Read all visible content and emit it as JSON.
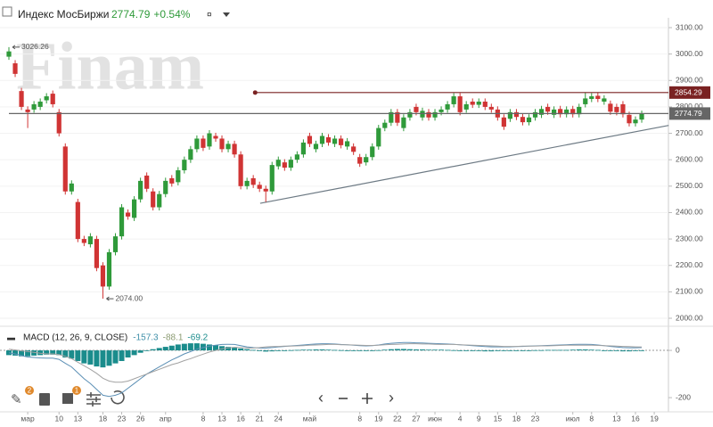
{
  "header": {
    "title": "Индекс МосБиржи",
    "price": 2774.79,
    "change": "+0.54%",
    "watermark": "Finam"
  },
  "toolbar": {
    "badges": [
      "2",
      "1"
    ]
  },
  "chart_data": [
    {
      "type": "candlestick",
      "up_color": "#2f9a3a",
      "down_color": "#d03434",
      "ylim": [
        2000,
        3100
      ],
      "yticks": [
        {
          "value": 2000,
          "label": "2000.00"
        },
        {
          "value": 2100,
          "label": "2100.00"
        },
        {
          "value": 2200,
          "label": "2200.00"
        },
        {
          "value": 2300,
          "label": "2300.00"
        },
        {
          "value": 2400,
          "label": "2400.00"
        },
        {
          "value": 2500,
          "label": "2500.00"
        },
        {
          "value": 2600,
          "label": "2600.00"
        },
        {
          "value": 2700,
          "label": "2700.00"
        },
        {
          "value": 2800,
          "label": "2800.00"
        },
        {
          "value": 2900,
          "label": "2900.00"
        },
        {
          "value": 3000,
          "label": "3000.00"
        },
        {
          "value": 3100,
          "label": "3100.00"
        }
      ],
      "xticks": [
        {
          "value": 3,
          "label": "мар"
        },
        {
          "value": 8,
          "label": "10"
        },
        {
          "value": 11,
          "label": "13"
        },
        {
          "value": 15,
          "label": "18"
        },
        {
          "value": 18,
          "label": "23"
        },
        {
          "value": 21,
          "label": "26"
        },
        {
          "value": 25,
          "label": "апр"
        },
        {
          "value": 31,
          "label": "8"
        },
        {
          "value": 34,
          "label": "13"
        },
        {
          "value": 37,
          "label": "16"
        },
        {
          "value": 40,
          "label": "21"
        },
        {
          "value": 43,
          "label": "24"
        },
        {
          "value": 48,
          "label": "май"
        },
        {
          "value": 56,
          "label": "8"
        },
        {
          "value": 59,
          "label": "19"
        },
        {
          "value": 62,
          "label": "22"
        },
        {
          "value": 65,
          "label": "27"
        },
        {
          "value": 68,
          "label": "июн"
        },
        {
          "value": 72,
          "label": "4"
        },
        {
          "value": 75,
          "label": "9"
        },
        {
          "value": 78,
          "label": "15"
        },
        {
          "value": 81,
          "label": "18"
        },
        {
          "value": 84,
          "label": "23"
        },
        {
          "value": 90,
          "label": "июл"
        },
        {
          "value": 93,
          "label": "8"
        },
        {
          "value": 97,
          "label": "13"
        },
        {
          "value": 100,
          "label": "16"
        },
        {
          "value": 103,
          "label": "19"
        }
      ],
      "open": [
        2990,
        2965,
        2860,
        2790,
        2790,
        2800,
        2825,
        2850,
        2780,
        2650,
        2480,
        2440,
        2300,
        2280,
        2300,
        2200,
        2120,
        2250,
        2310,
        2400,
        2380,
        2450,
        2540,
        2480,
        2420,
        2470,
        2530,
        2515,
        2560,
        2600,
        2640,
        2680,
        2650,
        2690,
        2680,
        2640,
        2660,
        2620,
        2500,
        2530,
        2505,
        2490,
        2480,
        2575,
        2590,
        2570,
        2600,
        2620,
        2690,
        2640,
        2660,
        2685,
        2660,
        2680,
        2650,
        2650,
        2610,
        2590,
        2610,
        2650,
        2720,
        2740,
        2780,
        2720,
        2760,
        2800,
        2760,
        2780,
        2760,
        2780,
        2790,
        2810,
        2840,
        2790,
        2820,
        2808,
        2820,
        2800,
        2790,
        2760,
        2755,
        2780,
        2762,
        2742,
        2760,
        2770,
        2800,
        2770,
        2792,
        2772,
        2792,
        2772,
        2810,
        2830,
        2842,
        2820,
        2812,
        2800,
        2810,
        2770,
        2738,
        2752
      ],
      "high": [
        3026.26,
        2977,
        2872,
        2802,
        2822,
        2832,
        2852,
        2862,
        2792,
        2662,
        2522,
        2452,
        2312,
        2322,
        2312,
        2212,
        2262,
        2322,
        2432,
        2412,
        2462,
        2532,
        2552,
        2492,
        2482,
        2532,
        2542,
        2572,
        2612,
        2652,
        2692,
        2692,
        2712,
        2702,
        2692,
        2672,
        2672,
        2632,
        2532,
        2542,
        2517,
        2502,
        2592,
        2612,
        2602,
        2612,
        2632,
        2677,
        2702,
        2672,
        2702,
        2697,
        2692,
        2692,
        2682,
        2662,
        2622,
        2622,
        2662,
        2732,
        2752,
        2792,
        2792,
        2772,
        2792,
        2812,
        2797,
        2792,
        2792,
        2802,
        2822,
        2852,
        2852,
        2822,
        2832,
        2832,
        2832,
        2812,
        2802,
        2772,
        2792,
        2792,
        2774,
        2772,
        2792,
        2804,
        2812,
        2802,
        2804,
        2802,
        2804,
        2812,
        2854.29,
        2852,
        2854,
        2844,
        2824,
        2812,
        2822,
        2782,
        2764,
        2786
      ],
      "low": [
        2978,
        2913,
        2788,
        2720,
        2778,
        2788,
        2813,
        2798,
        2688,
        2468,
        2468,
        2288,
        2273,
        2268,
        2178,
        2074,
        2108,
        2238,
        2298,
        2373,
        2368,
        2438,
        2478,
        2408,
        2408,
        2458,
        2498,
        2503,
        2548,
        2588,
        2628,
        2633,
        2638,
        2668,
        2628,
        2628,
        2608,
        2488,
        2488,
        2493,
        2478,
        2440,
        2468,
        2563,
        2558,
        2558,
        2588,
        2608,
        2648,
        2628,
        2648,
        2653,
        2648,
        2643,
        2638,
        2618,
        2573,
        2578,
        2598,
        2638,
        2708,
        2728,
        2728,
        2708,
        2748,
        2768,
        2748,
        2748,
        2748,
        2768,
        2778,
        2798,
        2768,
        2778,
        2796,
        2796,
        2788,
        2778,
        2748,
        2713,
        2743,
        2750,
        2730,
        2730,
        2748,
        2758,
        2770,
        2758,
        2760,
        2760,
        2760,
        2760,
        2798,
        2818,
        2818,
        2808,
        2770,
        2768,
        2760,
        2726,
        2726,
        2740
      ],
      "close": [
        3010,
        2925,
        2800,
        2780,
        2810,
        2820,
        2840,
        2810,
        2700,
        2480,
        2510,
        2300,
        2285,
        2310,
        2190,
        2120,
        2250,
        2310,
        2420,
        2385,
        2450,
        2520,
        2490,
        2420,
        2470,
        2520,
        2510,
        2560,
        2600,
        2640,
        2680,
        2645,
        2700,
        2680,
        2640,
        2660,
        2620,
        2500,
        2520,
        2505,
        2490,
        2480,
        2580,
        2600,
        2570,
        2600,
        2620,
        2665,
        2660,
        2660,
        2690,
        2665,
        2680,
        2655,
        2670,
        2630,
        2585,
        2610,
        2650,
        2720,
        2740,
        2780,
        2740,
        2760,
        2780,
        2780,
        2785,
        2760,
        2780,
        2790,
        2810,
        2840,
        2780,
        2810,
        2808,
        2820,
        2800,
        2790,
        2760,
        2725,
        2780,
        2762,
        2742,
        2760,
        2780,
        2792,
        2782,
        2790,
        2772,
        2790,
        2772,
        2800,
        2832,
        2840,
        2830,
        2832,
        2782,
        2780,
        2772,
        2738,
        2752,
        2774.79
      ],
      "max_label": 3026.26,
      "min_label": {
        "value": 2074,
        "label": "2074.00"
      },
      "levels": [
        {
          "value": 2854.29,
          "x_start": 39.3,
          "color": "#7a2222"
        },
        {
          "value": 2774.79,
          "x_start": 0,
          "color": "#666666"
        }
      ],
      "trendline": {
        "x": [
          40.1,
          105.3
        ],
        "y": [
          2435,
          2730
        ],
        "color": "#6d7a84"
      }
    },
    {
      "type": "macd",
      "title": "MACD (12, 26, 9, CLOSE)",
      "readouts": [
        {
          "text": "-157.3",
          "color": "#3f8fa8"
        },
        {
          "text": "-88.1",
          "color": "#8a9a70"
        },
        {
          "text": "-69.2",
          "color": "#1a8c8c"
        }
      ],
      "ylim": [
        -245,
        87
      ],
      "yticks": [
        0,
        -200
      ],
      "histogram": {
        "color": "#1a8c8c",
        "values": [
          -20,
          -22,
          -25,
          -25,
          -22,
          -20,
          -18,
          -18,
          -20,
          -30,
          -35,
          -45,
          -55,
          -60,
          -68,
          -72,
          -65,
          -55,
          -45,
          -30,
          -20,
          -10,
          0,
          5,
          10,
          15,
          20,
          25,
          28,
          30,
          30,
          28,
          25,
          22,
          18,
          15,
          12,
          8,
          5,
          2,
          -2,
          -5,
          -4,
          -2,
          -1,
          1,
          2,
          3,
          3,
          4,
          4,
          3,
          2,
          1,
          0,
          -1,
          -2,
          -2,
          -1,
          1,
          3,
          5,
          6,
          6,
          5,
          4,
          4,
          3,
          3,
          3,
          2,
          1,
          0,
          -1,
          -2,
          -3,
          -4,
          -4,
          -3,
          -2,
          -2,
          -1,
          -1,
          0,
          1,
          1,
          2,
          2,
          2,
          2,
          3,
          4,
          4,
          3,
          2,
          0,
          -2,
          -3,
          -4,
          -4,
          -3,
          -2
        ]
      },
      "series": [
        {
          "color": "#5b8fb5",
          "values": [
            -10,
            -15,
            -22,
            -28,
            -30,
            -32,
            -33,
            -33,
            -38,
            -55,
            -70,
            -95,
            -120,
            -140,
            -165,
            -190,
            -195,
            -190,
            -180,
            -160,
            -140,
            -120,
            -100,
            -85,
            -70,
            -55,
            -40,
            -28,
            -15,
            -5,
            5,
            12,
            18,
            22,
            25,
            26,
            25,
            20,
            15,
            12,
            10,
            10,
            12,
            15,
            17,
            19,
            21,
            23,
            25,
            27,
            28,
            28,
            27,
            25,
            24,
            22,
            20,
            19,
            20,
            23,
            27,
            30,
            32,
            33,
            33,
            32,
            31,
            30,
            29,
            28,
            27,
            26,
            24,
            22,
            20,
            18,
            16,
            15,
            15,
            15,
            15,
            16,
            17,
            18,
            19,
            20,
            21,
            22,
            23,
            24,
            25,
            26,
            26,
            25,
            23,
            20,
            17,
            14,
            12,
            11,
            11,
            12
          ]
        },
        {
          "color": "#a2a2a2",
          "values": [
            5,
            2,
            -2,
            -5,
            -8,
            -12,
            -15,
            -15,
            -18,
            -25,
            -35,
            -50,
            -65,
            -80,
            -97,
            -118,
            -130,
            -135,
            -135,
            -130,
            -120,
            -110,
            -100,
            -90,
            -80,
            -70,
            -60,
            -53,
            -43,
            -35,
            -25,
            -16,
            -7,
            0,
            7,
            11,
            13,
            12,
            10,
            10,
            12,
            15,
            16,
            17,
            18,
            18,
            19,
            20,
            22,
            23,
            24,
            25,
            25,
            24,
            24,
            23,
            22,
            21,
            21,
            22,
            24,
            25,
            26,
            27,
            28,
            28,
            27,
            27,
            26,
            25,
            25,
            25,
            24,
            23,
            22,
            21,
            20,
            19,
            18,
            17,
            17,
            17,
            18,
            18,
            18,
            19,
            19,
            20,
            21,
            22,
            22,
            22,
            22,
            22,
            21,
            20,
            19,
            18,
            17,
            16,
            15,
            14
          ]
        }
      ]
    }
  ]
}
